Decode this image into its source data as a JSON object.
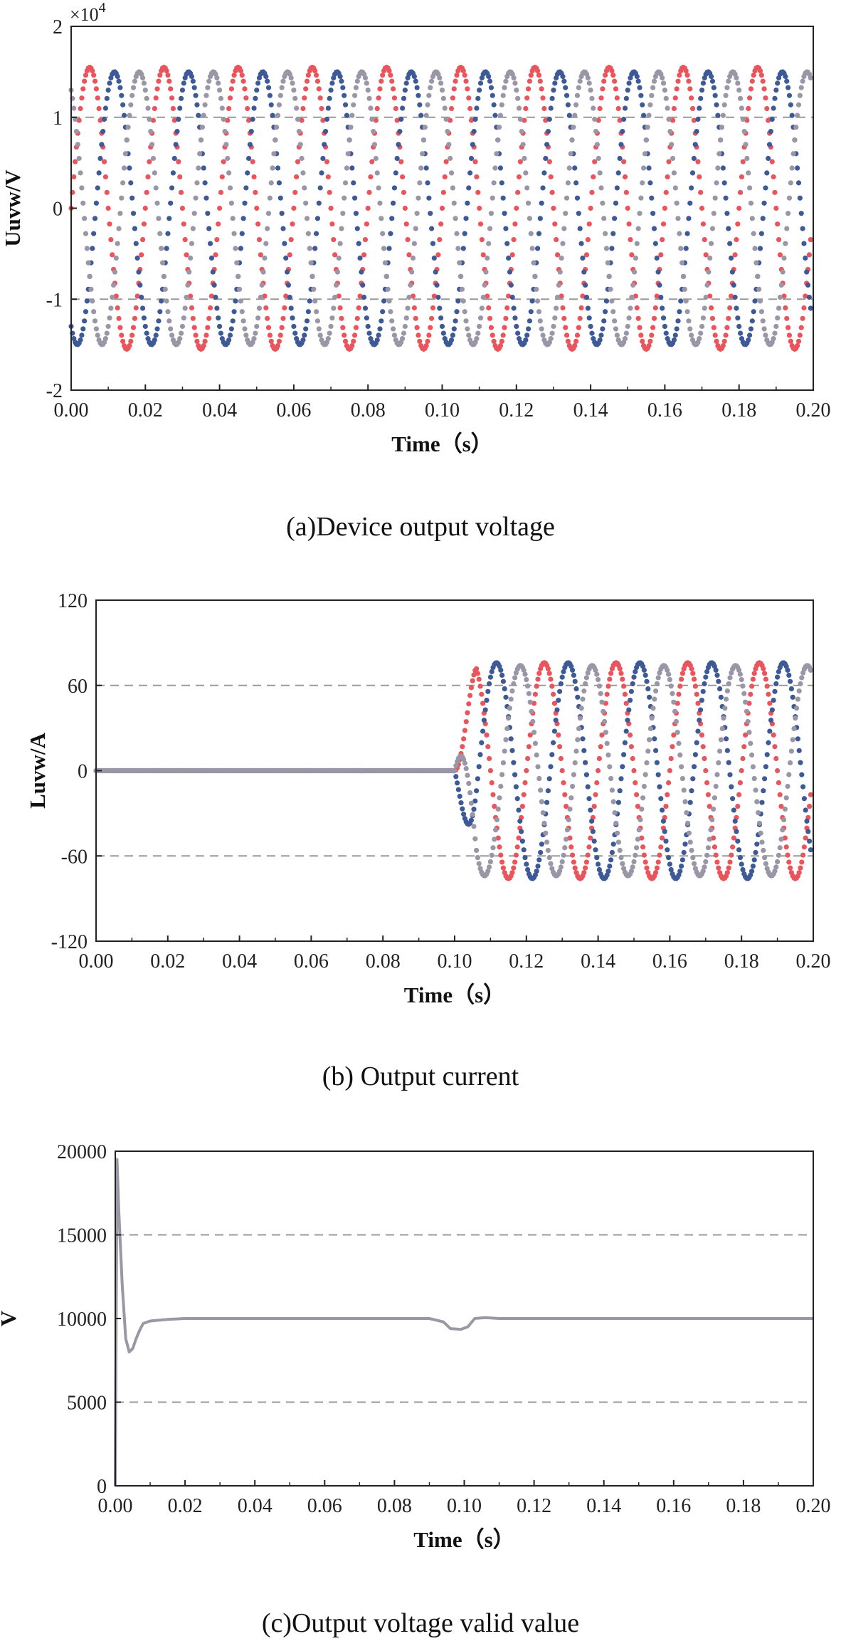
{
  "chart_data": [
    {
      "type": "scatter",
      "caption": "(a)Device output voltage",
      "xlabel": "Time（s）",
      "ylabel": "Uuvw/V",
      "y_multiplier": "×10",
      "y_multiplier_exp": "4",
      "xlim": [
        0,
        0.2
      ],
      "ylim": [
        -20000,
        20000
      ],
      "x_ticks": [
        "0.00",
        "0.02",
        "0.04",
        "0.06",
        "0.08",
        "0.10",
        "0.12",
        "0.14",
        "0.16",
        "0.18",
        "0.20"
      ],
      "y_ticks": [
        "2",
        "1",
        "0",
        "-1",
        "-2"
      ],
      "y_tick_values": [
        20000,
        10000,
        0,
        -10000,
        -20000
      ],
      "grid_lines_y": [
        10000,
        -10000
      ],
      "frequency_hz": 50,
      "series_colors": [
        "#e8555c",
        "#3e5a96",
        "#9a96a6"
      ],
      "series": [
        {
          "color": "#e8555c",
          "phase_deg": 0,
          "amplitude": 15500,
          "points_per_cycle": 56
        },
        {
          "color": "#3e5a96",
          "phase_deg": -120,
          "amplitude": 15000,
          "points_per_cycle": 56
        },
        {
          "color": "#9a96a6",
          "phase_deg": 120,
          "amplitude": 15000,
          "points_per_cycle": 56
        }
      ]
    },
    {
      "type": "scatter",
      "caption": "(b) Output current",
      "xlabel": "Time（s）",
      "ylabel": "Luvw/A",
      "xlim": [
        0,
        0.2
      ],
      "ylim": [
        -120,
        120
      ],
      "x_ticks": [
        "0.00",
        "0.02",
        "0.04",
        "0.06",
        "0.08",
        "0.10",
        "0.12",
        "0.14",
        "0.16",
        "0.18",
        "0.20"
      ],
      "y_ticks": [
        "120",
        "60",
        "0",
        "-60",
        "-120"
      ],
      "y_tick_values": [
        120,
        60,
        0,
        -60,
        -120
      ],
      "grid_lines_y": [
        60,
        -60
      ],
      "frequency_hz": 50,
      "start_time": 0.1,
      "series": [
        {
          "color": "#e8555c",
          "phase_deg": 0,
          "amplitude": 76,
          "points_per_cycle": 56
        },
        {
          "color": "#3e5a96",
          "phase_deg": -120,
          "amplitude": 76,
          "points_per_cycle": 56
        },
        {
          "color": "#9a96a6",
          "phase_deg": 120,
          "amplitude": 74,
          "points_per_cycle": 56
        }
      ]
    },
    {
      "type": "line",
      "caption": "(c)Output voltage valid value",
      "xlabel": "Time（s）",
      "ylabel": "V",
      "xlim": [
        0,
        0.2
      ],
      "ylim": [
        0,
        20000
      ],
      "x_ticks": [
        "0.00",
        "0.02",
        "0.04",
        "0.06",
        "0.08",
        "0.10",
        "0.12",
        "0.14",
        "0.16",
        "0.18",
        "0.20"
      ],
      "y_ticks": [
        "20000",
        "15000",
        "10000",
        "5000",
        "0"
      ],
      "y_tick_values": [
        20000,
        15000,
        10000,
        5000,
        0
      ],
      "grid_lines_y": [
        15000,
        5000
      ],
      "series": [
        {
          "color": "#9a98a4",
          "x": [
            0,
            0.0005,
            0.001,
            0.002,
            0.003,
            0.004,
            0.005,
            0.006,
            0.007,
            0.008,
            0.01,
            0.015,
            0.02,
            0.06,
            0.09,
            0.094,
            0.096,
            0.099,
            0.101,
            0.103,
            0.106,
            0.11,
            0.2
          ],
          "y": [
            0,
            19500,
            16500,
            12000,
            8800,
            8000,
            8200,
            8800,
            9300,
            9700,
            9850,
            9950,
            10000,
            10000,
            10000,
            9800,
            9400,
            9350,
            9500,
            10000,
            10050,
            10000,
            10000
          ]
        }
      ]
    }
  ]
}
